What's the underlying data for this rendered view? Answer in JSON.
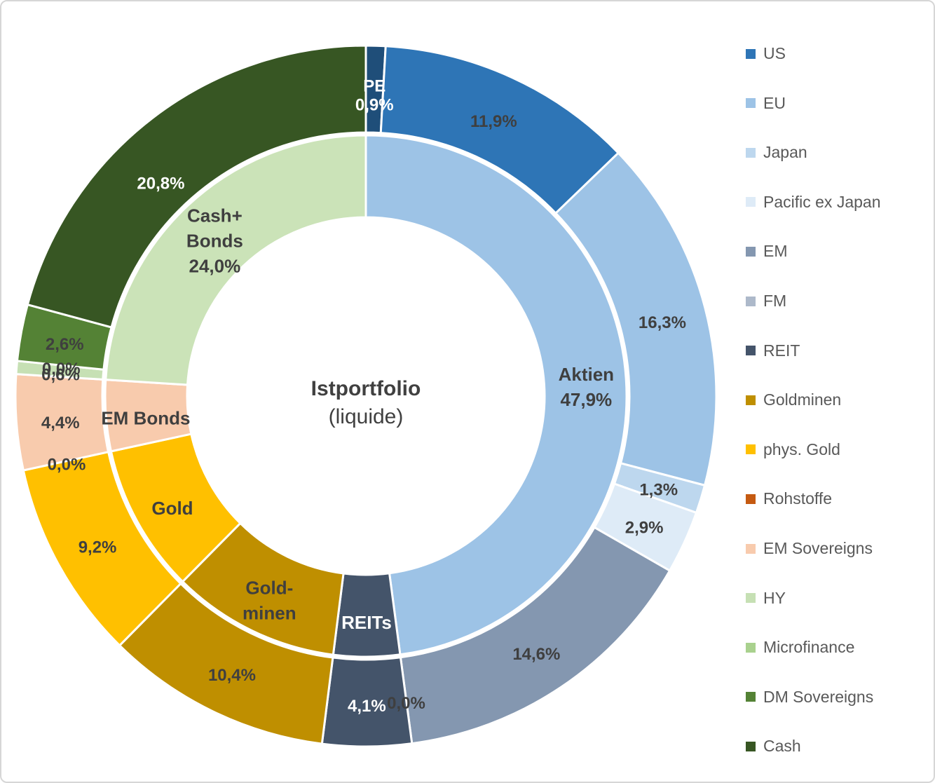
{
  "chart": {
    "center_title": "Istportfolio",
    "center_subtitle": "(liquide)"
  },
  "chart_data": {
    "type": "donut",
    "title": "Istportfolio (liquide)",
    "direction": "clockwise",
    "start_angle_deg": 0,
    "legend_position": "right",
    "rings": {
      "outer": [
        {
          "name": "PE",
          "value": 0.9,
          "display": "0,9%",
          "color": "#1F4E79",
          "label_lines": [
            "PE",
            "0,9%"
          ],
          "label_color": "#FFFFFF",
          "label_radius": 434
        },
        {
          "name": "US",
          "value": 11.9,
          "display": "11,9%",
          "color": "#2E75B6",
          "label_lines": [
            "11,9%"
          ],
          "label_color": "#3F3F3F"
        },
        {
          "name": "EU",
          "value": 16.3,
          "display": "16,3%",
          "color": "#9DC3E6",
          "label_lines": [
            "16,3%"
          ],
          "label_color": "#3F3F3F"
        },
        {
          "name": "Japan",
          "value": 1.3,
          "display": "1,3%",
          "color": "#BDD7EE",
          "label_lines": [
            "1,3%"
          ],
          "label_color": "#3F3F3F"
        },
        {
          "name": "Pacific ex Japan",
          "value": 2.9,
          "display": "2,9%",
          "color": "#DEEBF7",
          "label_lines": [
            "2,9%"
          ],
          "label_color": "#3F3F3F"
        },
        {
          "name": "EM",
          "value": 14.6,
          "display": "14,6%",
          "color": "#8497B0",
          "label_lines": [
            "14,6%"
          ],
          "label_color": "#3F3F3F"
        },
        {
          "name": "FM",
          "value": 0.0,
          "display": "0,0%",
          "color": "#ADB9CA",
          "label_lines": [
            "0,0%"
          ],
          "label_color": "#3F3F3F"
        },
        {
          "name": "REIT",
          "value": 4.1,
          "display": "4,1%",
          "color": "#44546A",
          "label_lines": [
            "4,1%"
          ],
          "label_color": "#FFFFFF"
        },
        {
          "name": "Goldminen",
          "value": 10.4,
          "display": "10,4%",
          "color": "#BF8F00",
          "label_lines": [
            "10,4%"
          ],
          "label_color": "#3F3F3F"
        },
        {
          "name": "phys. Gold",
          "value": 9.2,
          "display": "9,2%",
          "color": "#FFC000",
          "label_lines": [
            "9,2%"
          ],
          "label_color": "#3F3F3F"
        },
        {
          "name": "Rohstoffe",
          "value": 0.0,
          "display": "0,0%",
          "color": "#C55A11",
          "label_lines": [
            "0,0%"
          ],
          "label_color": "#3F3F3F"
        },
        {
          "name": "EM Sovereigns",
          "value": 4.4,
          "display": "4,4%",
          "color": "#F8CBAD",
          "label_lines": [
            "4,4%"
          ],
          "label_color": "#3F3F3F"
        },
        {
          "name": "HY",
          "value": 0.6,
          "display": "0,6%",
          "color": "#C6E0B4",
          "label_lines": [
            "0,6%"
          ],
          "label_color": "#3F3F3F"
        },
        {
          "name": "Microfinance",
          "value": 0.0,
          "display": "0,0%",
          "color": "#A9D18E",
          "label_lines": [
            "0,0%"
          ],
          "label_color": "#3F3F3F"
        },
        {
          "name": "DM Sovereigns",
          "value": 2.6,
          "display": "2,6%",
          "color": "#548235",
          "label_lines": [
            "2,6%"
          ],
          "label_color": "#3F3F3F"
        },
        {
          "name": "Cash",
          "value": 20.8,
          "display": "20,8%",
          "color": "#375623",
          "label_lines": [
            "20,8%"
          ],
          "label_color": "#FFFFFF",
          "label_angle": 316.5,
          "label_radius": 425
        }
      ],
      "inner": [
        {
          "name": "Aktien",
          "value": 47.9,
          "display": "47,9%",
          "color": "#9DC3E6",
          "label_lines": [
            "Aktien",
            "47,9%"
          ],
          "label_color": "#3F3F3F"
        },
        {
          "name": "REITs",
          "value": 4.1,
          "display": "4,1%",
          "color": "#44546A",
          "label_lines": [
            "REITs"
          ],
          "label_color": "#FFFFFF"
        },
        {
          "name": "Goldminen",
          "value": 10.4,
          "display": "10,4%",
          "color": "#BF8F00",
          "label_lines": [
            "Gold-",
            "minen"
          ],
          "label_color": "#3F3F3F"
        },
        {
          "name": "Gold",
          "value": 9.2,
          "display": "9,2%",
          "color": "#FFC000",
          "label_lines": [
            "Gold"
          ],
          "label_color": "#3F3F3F"
        },
        {
          "name": "EM Bonds",
          "value": 4.4,
          "display": "4,4%",
          "color": "#F8CBAD",
          "label_lines": [
            "EM Bonds"
          ],
          "label_color": "#3F3F3F"
        },
        {
          "name": "Cash+Bonds",
          "value": 24.0,
          "display": "24,0%",
          "color": "#CBE3B8",
          "label_lines": [
            "Cash+",
            "Bonds",
            "24,0%"
          ],
          "label_color": "#3F3F3F"
        }
      ]
    },
    "legend": [
      {
        "label": "US",
        "color": "#2E75B6"
      },
      {
        "label": "EU",
        "color": "#9DC3E6"
      },
      {
        "label": "Japan",
        "color": "#BDD7EE"
      },
      {
        "label": "Pacific ex Japan",
        "color": "#DEEBF7"
      },
      {
        "label": "EM",
        "color": "#8497B0"
      },
      {
        "label": "FM",
        "color": "#ADB9CA"
      },
      {
        "label": "REIT",
        "color": "#44546A"
      },
      {
        "label": "Goldminen",
        "color": "#BF8F00"
      },
      {
        "label": "phys. Gold",
        "color": "#FFC000"
      },
      {
        "label": "Rohstoffe",
        "color": "#C55A11"
      },
      {
        "label": "EM Sovereigns",
        "color": "#F8CBAD"
      },
      {
        "label": "HY",
        "color": "#C6E0B4"
      },
      {
        "label": "Microfinance",
        "color": "#A9D18E"
      },
      {
        "label": "DM Sovereigns",
        "color": "#548235"
      },
      {
        "label": "Cash",
        "color": "#375623"
      }
    ]
  }
}
